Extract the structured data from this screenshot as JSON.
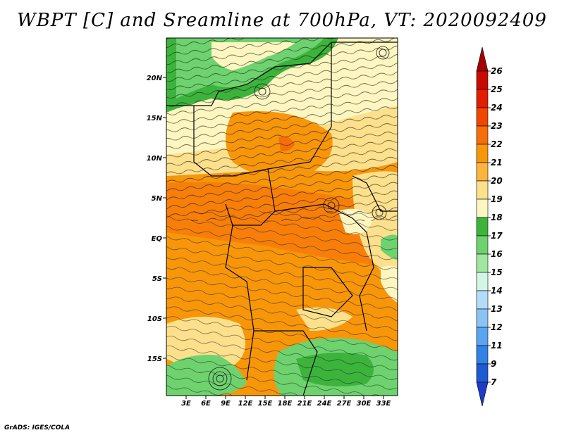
{
  "title": "WBPT [C] and Sreamline at 700hPa, VT: 2020092409",
  "credit": "GrADS: IGES/COLA",
  "map": {
    "lat_labels": [
      "20N",
      "15N",
      "10N",
      "5N",
      "EQ",
      "5S",
      "10S",
      "15S"
    ],
    "lon_labels": [
      "3E",
      "6E",
      "9E",
      "12E",
      "15E",
      "18E",
      "21E",
      "24E",
      "27E",
      "30E",
      "33E"
    ]
  },
  "colorbar": {
    "labels": [
      "26",
      "25",
      "24",
      "23",
      "22",
      "21",
      "20",
      "19",
      "18",
      "17",
      "16",
      "15",
      "14",
      "13",
      "12",
      "11",
      "9",
      "7"
    ],
    "colors": [
      "#a50000",
      "#c80a00",
      "#e11e00",
      "#f04600",
      "#f56e0a",
      "#f8960a",
      "#fbb43c",
      "#fde08c",
      "#fdf6c0",
      "#3cb43c",
      "#6ed26e",
      "#a0e6a0",
      "#d2f5e6",
      "#b4dcfa",
      "#8cc3f5",
      "#5aa5f0",
      "#3282e6",
      "#1e5ad2",
      "#1e3cc8"
    ]
  },
  "chart_data": {
    "type": "heatmap",
    "title": "WBPT [C] and Sreamline at 700hPa, VT: 2020092409",
    "variable": "WBPT [C]",
    "level": "700hPa",
    "valid_time": "2020092409",
    "lon_range": [
      0,
      35
    ],
    "lat_range": [
      -20,
      24
    ],
    "legend": "right, vertical colorbar",
    "levels": [
      7,
      9,
      11,
      12,
      13,
      14,
      15,
      16,
      17,
      18,
      19,
      20,
      21,
      22,
      23,
      24,
      25,
      26
    ]
  }
}
